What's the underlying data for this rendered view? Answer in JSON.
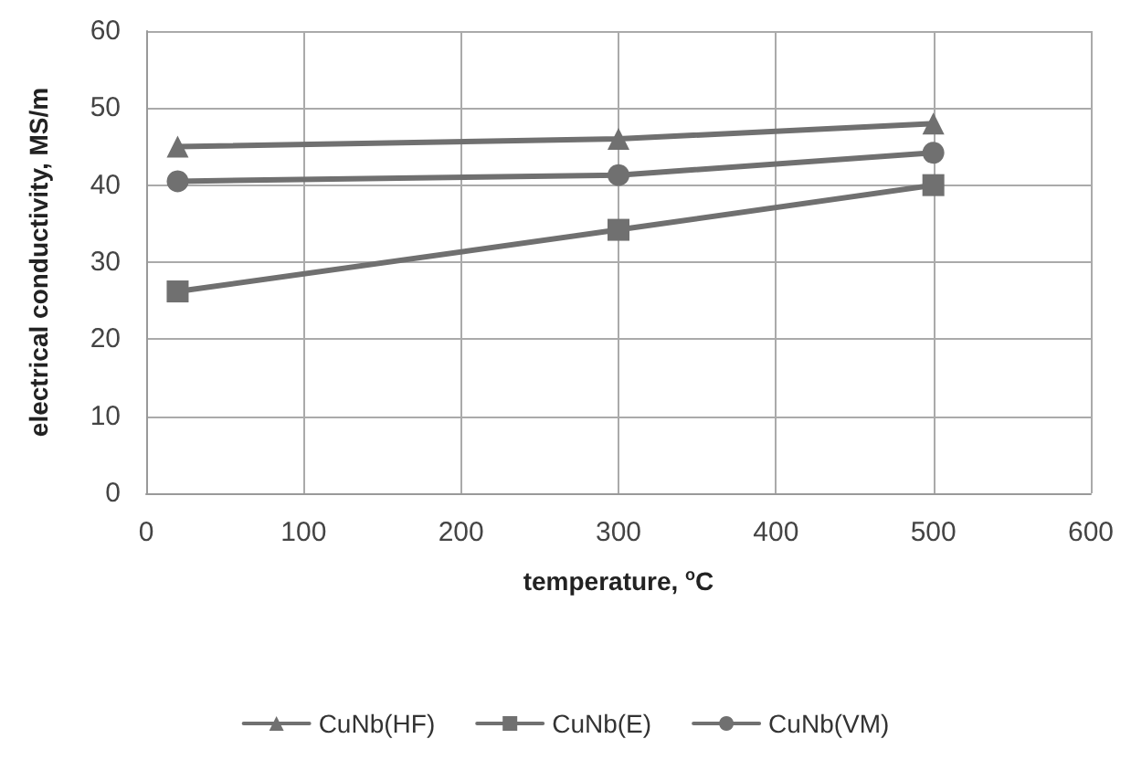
{
  "chart_data": {
    "type": "line",
    "xlabel": "temperature, $^{o}$C",
    "ylabel": "electrical conductivity, MS/m",
    "xlim": [
      0,
      600
    ],
    "xticks": [
      0,
      100,
      200,
      300,
      400,
      500,
      600
    ],
    "ylim": [
      0,
      60
    ],
    "yticks": [
      0,
      10,
      20,
      30,
      40,
      50,
      60
    ],
    "grid": true,
    "legend": "bottom",
    "line_style": "solid",
    "series": [
      {
        "name": "CuNb(HF)",
        "color": "#707070",
        "marker": "triangle",
        "x": [
          20,
          300,
          500
        ],
        "values": [
          45,
          46,
          48
        ]
      },
      {
        "name": "CuNb(E)",
        "color": "#707070",
        "marker": "square",
        "x": [
          20,
          300,
          500
        ],
        "values": [
          26.2,
          34.2,
          40
        ]
      },
      {
        "name": "CuNb(VM)",
        "color": "#707070",
        "marker": "circle",
        "x": [
          20,
          300,
          500
        ],
        "values": [
          40.5,
          41.3,
          44.2
        ]
      }
    ]
  }
}
